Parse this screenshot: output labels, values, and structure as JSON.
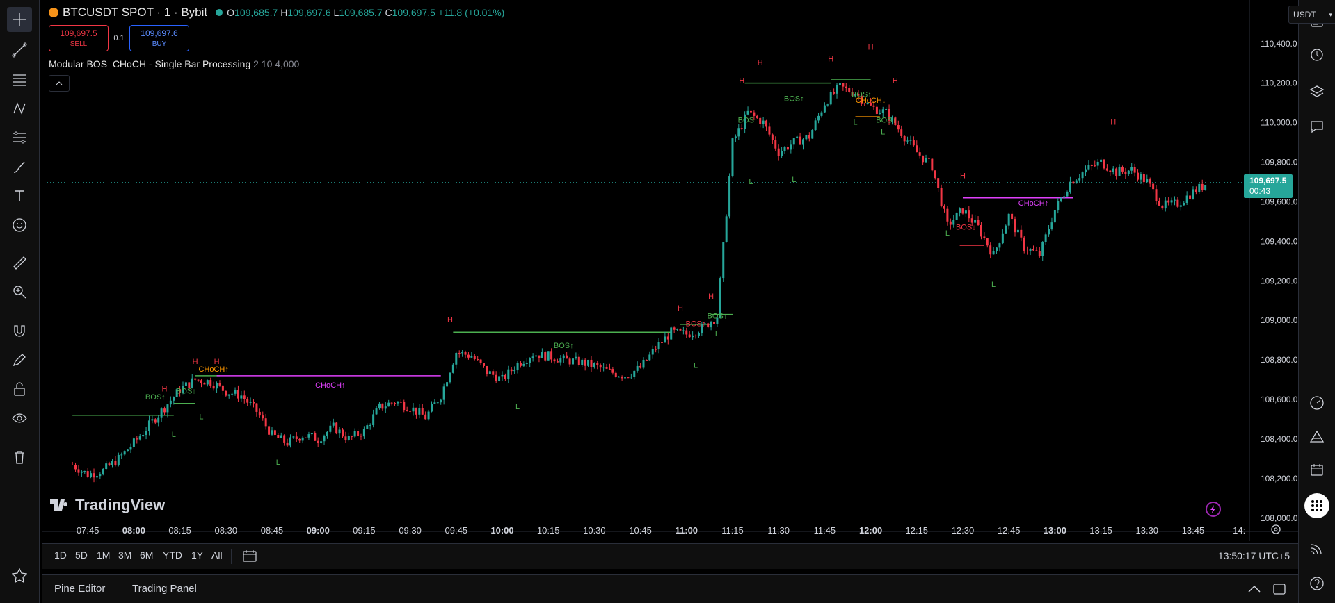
{
  "window": {
    "symbol": "BTCUSDT SPOT · 1 · Bybit",
    "ohlc": {
      "o_label": "O",
      "o": "109,685.7",
      "h_label": "H",
      "h": "109,697.6",
      "l_label": "L",
      "l": "109,685.7",
      "c_label": "C",
      "c": "109,697.5",
      "change": "+11.8 (+0.01%)"
    },
    "sell_price": "109,697.5",
    "sell_label": "SELL",
    "buy_price": "109,697.6",
    "buy_label": "BUY",
    "quantity": "0.1",
    "indicator_name": "Modular BOS_CHoCH - Single Bar Processing",
    "indicator_params": "2 10 4,000",
    "currency": "USDT",
    "watermark": "TradingView"
  },
  "price_tag": {
    "price": "109,697.5",
    "countdown": "00:43"
  },
  "bottom_bar": {
    "ranges": [
      "1D",
      "5D",
      "1M",
      "3M",
      "6M",
      "YTD",
      "1Y",
      "All"
    ],
    "clock": "13:50:17 UTC+5"
  },
  "panel_tabs": [
    "Pine Editor",
    "Trading Panel"
  ],
  "colors": {
    "up": "#26a69a",
    "down": "#f23645",
    "accent": "#2962ff",
    "bos_up": "#4caf50",
    "choch": "#e040fb",
    "label_h": "#f23645",
    "label_l": "#4caf50"
  },
  "chart_data": {
    "type": "candlestick",
    "y_ticks": [
      "110,400.0",
      "110,200.0",
      "110,000.0",
      "109,800.0",
      "109,600.0",
      "109,400.0",
      "109,200.0",
      "109,000.0",
      "108,800.0",
      "108,600.0",
      "108,400.0",
      "108,200.0",
      "108,000.0"
    ],
    "y_tick_values": [
      110400,
      110200,
      110000,
      109800,
      109600,
      109400,
      109200,
      109000,
      108800,
      108600,
      108400,
      108200,
      108000
    ],
    "x_ticks": [
      "07:45",
      "08:00",
      "08:15",
      "08:30",
      "08:45",
      "09:00",
      "09:15",
      "09:30",
      "09:45",
      "10:00",
      "10:15",
      "10:30",
      "10:45",
      "11:00",
      "11:15",
      "11:30",
      "11:45",
      "12:00",
      "12:15",
      "12:30",
      "12:45",
      "13:00",
      "13:15",
      "13:30",
      "13:45",
      "14:"
    ],
    "x_ticks_bold": [
      "08:00",
      "09:00",
      "10:00",
      "11:00",
      "12:00",
      "13:00"
    ],
    "ylim": [
      107950,
      110480
    ],
    "close_series_estimate": [
      [
        "07:40",
        108270
      ],
      [
        "07:45",
        108220
      ],
      [
        "07:50",
        108240
      ],
      [
        "07:55",
        108300
      ],
      [
        "08:00",
        108380
      ],
      [
        "08:05",
        108470
      ],
      [
        "08:10",
        108560
      ],
      [
        "08:15",
        108650
      ],
      [
        "08:20",
        108700
      ],
      [
        "08:25",
        108690
      ],
      [
        "08:30",
        108640
      ],
      [
        "08:35",
        108620
      ],
      [
        "08:40",
        108540
      ],
      [
        "08:45",
        108420
      ],
      [
        "08:50",
        108380
      ],
      [
        "08:55",
        108420
      ],
      [
        "09:00",
        108400
      ],
      [
        "09:05",
        108460
      ],
      [
        "09:10",
        108400
      ],
      [
        "09:15",
        108440
      ],
      [
        "09:20",
        108560
      ],
      [
        "09:25",
        108590
      ],
      [
        "09:30",
        108560
      ],
      [
        "09:35",
        108510
      ],
      [
        "09:40",
        108620
      ],
      [
        "09:45",
        108840
      ],
      [
        "09:50",
        108820
      ],
      [
        "09:55",
        108740
      ],
      [
        "10:00",
        108700
      ],
      [
        "10:05",
        108780
      ],
      [
        "10:10",
        108830
      ],
      [
        "10:15",
        108820
      ],
      [
        "10:20",
        108800
      ],
      [
        "10:25",
        108790
      ],
      [
        "10:30",
        108770
      ],
      [
        "10:35",
        108740
      ],
      [
        "10:40",
        108720
      ],
      [
        "10:45",
        108760
      ],
      [
        "10:50",
        108860
      ],
      [
        "10:55",
        108940
      ],
      [
        "11:00",
        108930
      ],
      [
        "11:05",
        108960
      ],
      [
        "11:10",
        109020
      ],
      [
        "11:15",
        109900
      ],
      [
        "11:20",
        110050
      ],
      [
        "11:25",
        110000
      ],
      [
        "11:30",
        109850
      ],
      [
        "11:35",
        109900
      ],
      [
        "11:40",
        109930
      ],
      [
        "11:45",
        110100
      ],
      [
        "11:50",
        110180
      ],
      [
        "11:55",
        110150
      ],
      [
        "12:00",
        110080
      ],
      [
        "12:05",
        110050
      ],
      [
        "12:10",
        109950
      ],
      [
        "12:15",
        109850
      ],
      [
        "12:20",
        109780
      ],
      [
        "12:25",
        109480
      ],
      [
        "12:30",
        109560
      ],
      [
        "12:35",
        109470
      ],
      [
        "12:40",
        109330
      ],
      [
        "12:45",
        109530
      ],
      [
        "12:50",
        109370
      ],
      [
        "12:55",
        109330
      ],
      [
        "13:00",
        109560
      ],
      [
        "13:05",
        109700
      ],
      [
        "13:10",
        109760
      ],
      [
        "13:15",
        109800
      ],
      [
        "13:20",
        109750
      ],
      [
        "13:25",
        109760
      ],
      [
        "13:30",
        109700
      ],
      [
        "13:35",
        109580
      ],
      [
        "13:40",
        109590
      ],
      [
        "13:45",
        109650
      ],
      [
        "13:50",
        109697.5
      ]
    ],
    "swing_labels": [
      {
        "text": "H",
        "time": "08:10",
        "price": 108640
      },
      {
        "text": "H",
        "time": "08:20",
        "price": 108780
      },
      {
        "text": "H",
        "time": "08:27",
        "price": 108780
      },
      {
        "text": "L",
        "time": "08:13",
        "price": 108410
      },
      {
        "text": "L",
        "time": "08:22",
        "price": 108500
      },
      {
        "text": "L",
        "time": "08:47",
        "price": 108270
      },
      {
        "text": "H",
        "time": "09:43",
        "price": 108990
      },
      {
        "text": "L",
        "time": "10:05",
        "price": 108550
      },
      {
        "text": "H",
        "time": "10:58",
        "price": 109050
      },
      {
        "text": "H",
        "time": "11:08",
        "price": 109110
      },
      {
        "text": "L",
        "time": "11:03",
        "price": 108760
      },
      {
        "text": "L",
        "time": "11:10",
        "price": 108920
      },
      {
        "text": "H",
        "time": "11:18",
        "price": 110200
      },
      {
        "text": "H",
        "time": "11:24",
        "price": 110290
      },
      {
        "text": "L",
        "time": "11:21",
        "price": 109690
      },
      {
        "text": "L",
        "time": "11:35",
        "price": 109700
      },
      {
        "text": "H",
        "time": "11:47",
        "price": 110310
      },
      {
        "text": "H",
        "time": "12:00",
        "price": 110370
      },
      {
        "text": "H",
        "time": "12:08",
        "price": 110200
      },
      {
        "text": "L",
        "time": "11:55",
        "price": 109990
      },
      {
        "text": "L",
        "time": "12:04",
        "price": 109940
      },
      {
        "text": "H",
        "time": "12:30",
        "price": 109720
      },
      {
        "text": "L",
        "time": "12:25",
        "price": 109430
      },
      {
        "text": "L",
        "time": "12:40",
        "price": 109170
      },
      {
        "text": "H",
        "time": "13:19",
        "price": 109990
      }
    ],
    "structure_lines": [
      {
        "kind": "BOS",
        "text": "BOS↑",
        "from": "07:40",
        "to": "08:13",
        "price": 108520,
        "color": "#4caf50"
      },
      {
        "kind": "BOS",
        "text": "BOS↑",
        "from": "08:13",
        "to": "08:20",
        "price": 108580,
        "color": "#4caf50"
      },
      {
        "kind": "BOS",
        "text": "BOS↑",
        "from": "08:20",
        "to": "08:28",
        "price": 108720,
        "color": "#4caf50"
      },
      {
        "kind": "CHoCH",
        "text": "CHoCH↑",
        "from": "08:27",
        "to": "09:40",
        "price": 108720,
        "color": "#e040fb"
      },
      {
        "kind": "BOS",
        "text": "BOS↑",
        "from": "09:44",
        "to": "10:55",
        "price": 108940,
        "color": "#4caf50"
      },
      {
        "kind": "BOS",
        "text": "BOS↑",
        "from": "10:58",
        "to": "11:08",
        "price": 108980,
        "color": "#4caf50"
      },
      {
        "kind": "BOS",
        "text": "BOS↑",
        "from": "11:08",
        "to": "11:15",
        "price": 109030,
        "color": "#4caf50"
      },
      {
        "kind": "BOS",
        "text": "BOS↑",
        "from": "11:19",
        "to": "11:47",
        "price": 110200,
        "color": "#4caf50"
      },
      {
        "kind": "BOS",
        "text": "BOS↑",
        "from": "11:47",
        "to": "12:00",
        "price": 110220,
        "color": "#4caf50"
      },
      {
        "kind": "CHoCH",
        "text": "CHoCH↓",
        "from": "11:55",
        "to": "12:03",
        "price": 110030,
        "color": "#ff9800"
      },
      {
        "kind": "BOS",
        "text": "BOS↓",
        "from": "12:29",
        "to": "12:37",
        "price": 109380,
        "color": "#f23645"
      },
      {
        "kind": "CHoCH",
        "text": "CHoCH↑",
        "from": "12:30",
        "to": "13:06",
        "price": 109620,
        "color": "#e040fb"
      }
    ],
    "structure_texts": [
      {
        "text": "BOS↑",
        "time": "08:07",
        "price": 108600,
        "color": "#4caf50"
      },
      {
        "text": "BOS↑",
        "time": "08:17",
        "price": 108630,
        "color": "#4caf50"
      },
      {
        "text": "CHoCH↑",
        "time": "08:26",
        "price": 108740,
        "color": "#ff9800"
      },
      {
        "text": "CHoCH↑",
        "time": "09:04",
        "price": 108660,
        "color": "#e040fb"
      },
      {
        "text": "BOS↑",
        "time": "10:20",
        "price": 108860,
        "color": "#4caf50"
      },
      {
        "text": "BOS↑",
        "time": "11:03",
        "price": 108970,
        "color": "#f23645"
      },
      {
        "text": "BOS↑",
        "time": "11:10",
        "price": 109010,
        "color": "#4caf50"
      },
      {
        "text": "BOS↑",
        "time": "11:20",
        "price": 110000,
        "color": "#4caf50"
      },
      {
        "text": "BOS↑",
        "time": "11:35",
        "price": 110110,
        "color": "#4caf50"
      },
      {
        "text": "BOS↑",
        "time": "11:57",
        "price": 110130,
        "color": "#4caf50"
      },
      {
        "text": "CHoCH↓",
        "time": "12:00",
        "price": 110100,
        "color": "#ff9800"
      },
      {
        "text": "BOS↑",
        "time": "12:05",
        "price": 110000,
        "color": "#4caf50"
      },
      {
        "text": "BOS↓",
        "time": "12:31",
        "price": 109460,
        "color": "#f23645"
      },
      {
        "text": "CHoCH↑",
        "time": "12:53",
        "price": 109580,
        "color": "#e040fb"
      }
    ],
    "current_price": 109697.5,
    "grid": false
  }
}
